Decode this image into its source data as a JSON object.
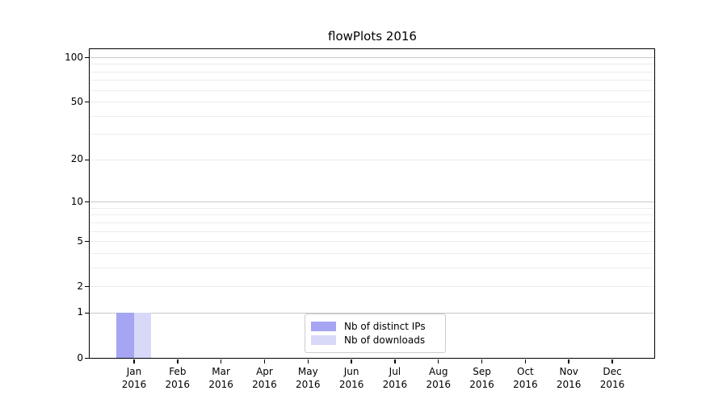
{
  "chart_data": {
    "type": "bar",
    "title": "flowPlots 2016",
    "x_axis": {
      "months": [
        "Jan",
        "Feb",
        "Mar",
        "Apr",
        "May",
        "Jun",
        "Jul",
        "Aug",
        "Sep",
        "Oct",
        "Nov",
        "Dec"
      ],
      "year": "2016"
    },
    "categories": [
      "Jan 2016",
      "Feb 2016",
      "Mar 2016",
      "Apr 2016",
      "May 2016",
      "Jun 2016",
      "Jul 2016",
      "Aug 2016",
      "Sep 2016",
      "Oct 2016",
      "Nov 2016",
      "Dec 2016"
    ],
    "series": [
      {
        "name": "Nb of distinct IPs",
        "color": "#a5a5f3",
        "values": [
          1,
          0,
          0,
          0,
          0,
          0,
          0,
          0,
          0,
          0,
          0,
          0
        ]
      },
      {
        "name": "Nb of downloads",
        "color": "#d8d8f8",
        "values": [
          1,
          0,
          0,
          0,
          0,
          0,
          0,
          0,
          0,
          0,
          0,
          0
        ]
      }
    ],
    "y_axis": {
      "scale": "log10(1+value)",
      "tick_values": [
        0,
        1,
        2,
        5,
        10,
        20,
        50,
        100
      ],
      "major_gridline_values": [
        1,
        10,
        100
      ],
      "minor_gridline_values": [
        2,
        3,
        4,
        5,
        6,
        7,
        8,
        9,
        20,
        30,
        40,
        50,
        60,
        70,
        80,
        90
      ],
      "ylim": [
        0,
        113
      ]
    },
    "legend": {
      "position": "lower center inside plot",
      "entries": [
        "Nb of distinct IPs",
        "Nb of downloads"
      ]
    },
    "grid": true,
    "colors": {
      "spine": "#000000",
      "major_grid": "#c9c9c9",
      "minor_grid": "#ececec",
      "background": "#ffffff"
    }
  }
}
